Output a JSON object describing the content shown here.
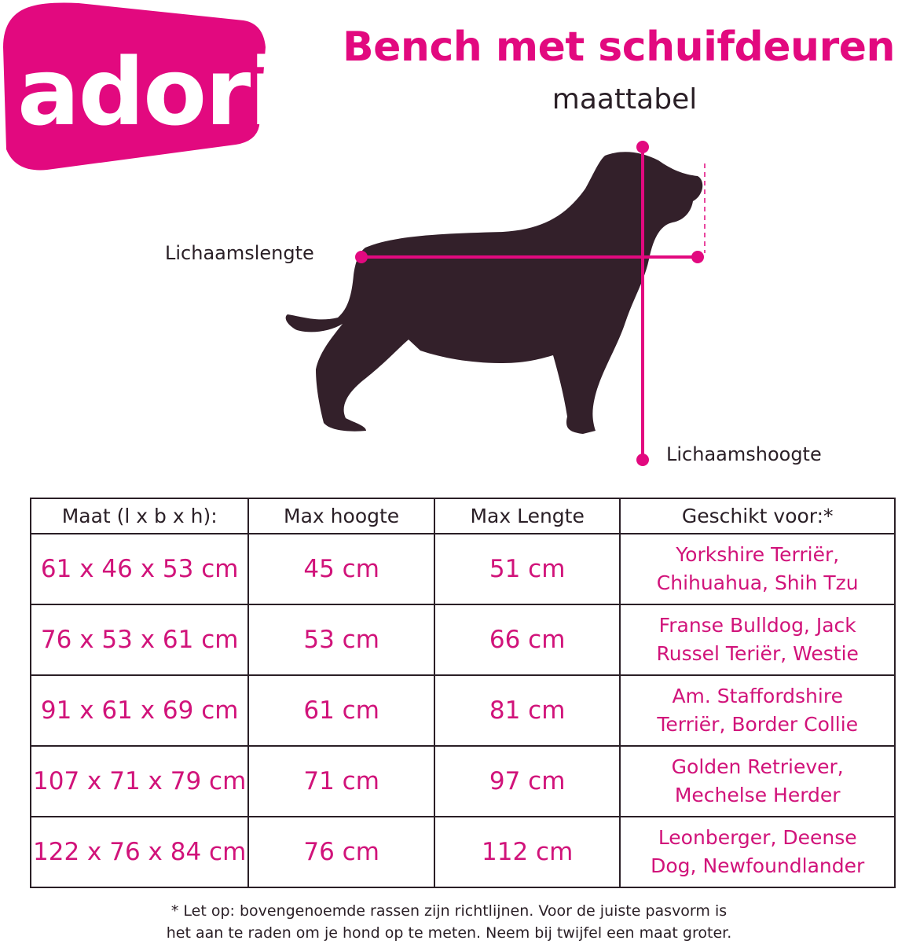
{
  "brand": {
    "logo_text": "adori",
    "color": "#e2097f"
  },
  "header": {
    "title": "Bench met schuifdeuren",
    "subtitle": "maattabel"
  },
  "diagram": {
    "length_label": "Lichaamslengte",
    "height_label": "Lichaamshoogte",
    "silhouette_color": "#33202a",
    "line_color": "#e2097f"
  },
  "table": {
    "headers": [
      "Maat (l x b x h):",
      "Max hoogte",
      "Max Lengte",
      "Geschikt voor:*"
    ],
    "rows": [
      {
        "size": "61 x 46 x 53 cm",
        "max_height": "45 cm",
        "max_length": "51 cm",
        "breeds": [
          "Yorkshire Terriër,",
          "Chihuahua, Shih Tzu"
        ]
      },
      {
        "size": "76 x 53 x 61 cm",
        "max_height": "53 cm",
        "max_length": "66 cm",
        "breeds": [
          "Franse Bulldog, Jack",
          "Russel Teriër, Westie"
        ]
      },
      {
        "size": "91 x 61 x 69 cm",
        "max_height": "61 cm",
        "max_length": "81 cm",
        "breeds": [
          "Am. Staffordshire",
          "Terriër, Border Collie"
        ]
      },
      {
        "size": "107 x 71 x 79 cm",
        "max_height": "71 cm",
        "max_length": "97 cm",
        "breeds": [
          "Golden Retriever,",
          "Mechelse Herder"
        ]
      },
      {
        "size": "122 x 76 x 84 cm",
        "max_height": "76 cm",
        "max_length": "112 cm",
        "breeds": [
          "Leonberger, Deense",
          "Dog, Newfoundlander"
        ]
      }
    ]
  },
  "footnote": {
    "line1": "* Let op: bovengenoemde rassen zijn richtlijnen. Voor de juiste pasvorm is",
    "line2": "het aan te raden om je hond op te meten. Neem bij twijfel een maat groter."
  }
}
